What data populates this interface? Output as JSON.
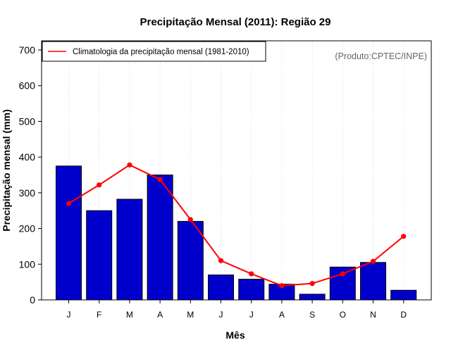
{
  "chart_data": {
    "type": "bar",
    "title": "Precipitação Mensal (2011): Região 29",
    "xlabel": "Mês",
    "ylabel": "Precipitação mensal (mm)",
    "ylim": [
      0,
      700
    ],
    "yticks": [
      0,
      100,
      200,
      300,
      400,
      500,
      600,
      700
    ],
    "categories": [
      "J",
      "F",
      "M",
      "A",
      "M",
      "J",
      "J",
      "A",
      "S",
      "O",
      "N",
      "D"
    ],
    "grid": "vertical dotted",
    "series": [
      {
        "name": "Precipitação mensal 2011",
        "type": "bar",
        "color": "#0000CC",
        "values": [
          375,
          250,
          282,
          350,
          220,
          70,
          58,
          44,
          16,
          92,
          105,
          27
        ]
      },
      {
        "name": "Climatologia da precipitação mensal (1981-2010)",
        "type": "line",
        "color": "#FF0000",
        "values": [
          270,
          322,
          378,
          337,
          225,
          110,
          73,
          40,
          46,
          73,
          108,
          178
        ]
      }
    ],
    "legend": {
      "position": "top-left",
      "entries": [
        "Climatologia da precipitação mensal (1981-2010)"
      ]
    },
    "annotation": "(Produto:CPTEC/INPE)"
  }
}
